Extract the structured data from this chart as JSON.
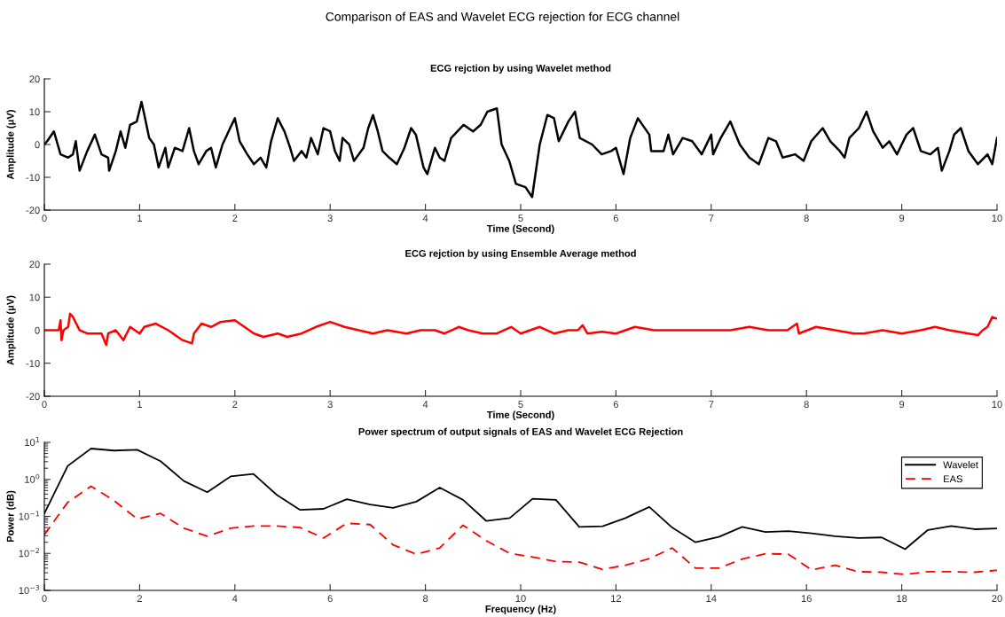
{
  "chart_data": [
    {
      "type": "line",
      "title": "ECG rejction by using Wavelet method",
      "annotations": [
        "Comparison of EAS and Wavelet ECG rejection for ECG channel"
      ],
      "xlabel": "Time (Second)",
      "ylabel": "Amplitude (μV)",
      "xlim": [
        0,
        10
      ],
      "ylim": [
        -20,
        20
      ],
      "xticks": [
        0,
        1,
        2,
        3,
        4,
        5,
        6,
        7,
        8,
        9,
        10
      ],
      "yticks": [
        -20,
        -10,
        0,
        10,
        20
      ],
      "grid": false,
      "legend": false,
      "series": [
        {
          "color": "#000000",
          "x": [
            0,
            0.03,
            0.1,
            0.17,
            0.25,
            0.3,
            0.33,
            0.37,
            0.45,
            0.53,
            0.6,
            0.67,
            0.68,
            0.75,
            0.8,
            0.85,
            0.9,
            0.97,
            1.02,
            1.05,
            1.1,
            1.15,
            1.2,
            1.27,
            1.3,
            1.37,
            1.45,
            1.52,
            1.57,
            1.62,
            1.7,
            1.75,
            1.8,
            1.87,
            1.95,
            2.0,
            2.05,
            2.13,
            2.2,
            2.27,
            2.33,
            2.38,
            2.45,
            2.52,
            2.58,
            2.62,
            2.7,
            2.75,
            2.8,
            2.87,
            2.93,
            3.0,
            3.05,
            3.1,
            3.13,
            3.2,
            3.25,
            3.35,
            3.4,
            3.45,
            3.5,
            3.55,
            3.62,
            3.7,
            3.78,
            3.85,
            3.9,
            3.98,
            4.02,
            4.1,
            4.15,
            4.2,
            4.27,
            4.4,
            4.5,
            4.58,
            4.65,
            4.75,
            4.8,
            4.88,
            4.95,
            5.05,
            5.12,
            5.2,
            5.28,
            5.35,
            5.4,
            5.5,
            5.57,
            5.62,
            5.75,
            5.85,
            5.95,
            6.0,
            6.08,
            6.15,
            6.23,
            6.35,
            6.37,
            6.5,
            6.55,
            6.6,
            6.7,
            6.8,
            6.9,
            7.0,
            7.02,
            7.1,
            7.2,
            7.3,
            7.4,
            7.5,
            7.6,
            7.68,
            7.75,
            7.88,
            7.97,
            8.05,
            8.17,
            8.25,
            8.35,
            8.4,
            8.45,
            8.55,
            8.63,
            8.7,
            8.8,
            8.87,
            8.95,
            9.05,
            9.12,
            9.2,
            9.3,
            9.38,
            9.42,
            9.5,
            9.55,
            9.62,
            9.7,
            9.8,
            9.9,
            9.95,
            10.0
          ],
          "values": [
            0,
            1,
            4,
            -3,
            -4,
            -3,
            1,
            -8,
            -2,
            3,
            -3,
            -4,
            -8,
            -2,
            4,
            -1,
            6,
            7,
            13,
            9,
            2,
            0,
            -7,
            -1,
            -7,
            -1,
            -2,
            5,
            -2,
            -6,
            -2,
            -1,
            -7,
            0,
            5,
            8,
            1,
            -3,
            -6,
            -4,
            -7,
            1,
            8,
            4,
            -1,
            -5,
            -2,
            -4,
            2,
            -3,
            5,
            4,
            -2,
            -5,
            2,
            0,
            -5,
            -1,
            5,
            9,
            4,
            -2,
            -4,
            -6,
            -1,
            5,
            3,
            -7,
            -9,
            -1,
            -4,
            -5,
            2,
            6,
            4,
            6,
            10,
            11,
            0,
            -5,
            -12,
            -13,
            -16,
            0,
            9,
            8,
            1,
            7,
            10,
            2,
            0,
            -3,
            -2,
            -1,
            -9,
            2,
            8,
            3,
            -2,
            -2,
            3,
            -3,
            2,
            1,
            -3,
            3,
            -3,
            2,
            7,
            0,
            -4,
            -6,
            2,
            1,
            -4,
            -3,
            -5,
            1,
            5,
            1,
            -2,
            -4,
            2,
            5,
            10,
            4,
            -1,
            1,
            -3,
            3,
            5,
            -2,
            -3,
            -1,
            -8,
            -2,
            3,
            5,
            -2,
            -6,
            -3,
            -6,
            2
          ]
        }
      ]
    },
    {
      "type": "line",
      "title": "ECG rejction by using Ensemble Average method",
      "xlabel": "Time (Second)",
      "ylabel": "Amplitude (μV)",
      "xlim": [
        0,
        10
      ],
      "ylim": [
        -20,
        20
      ],
      "xticks": [
        0,
        1,
        2,
        3,
        4,
        5,
        6,
        7,
        8,
        9,
        10
      ],
      "yticks": [
        -20,
        -10,
        0,
        10,
        20
      ],
      "grid": false,
      "legend": false,
      "series": [
        {
          "color": "#ff0000",
          "x": [
            0,
            0.15,
            0.17,
            0.18,
            0.2,
            0.25,
            0.27,
            0.3,
            0.37,
            0.45,
            0.55,
            0.6,
            0.65,
            0.67,
            0.75,
            0.83,
            0.9,
            1.0,
            1.05,
            1.17,
            1.3,
            1.45,
            1.55,
            1.57,
            1.65,
            1.75,
            1.85,
            2.0,
            2.1,
            2.2,
            2.3,
            2.45,
            2.55,
            2.7,
            2.85,
            3.0,
            3.15,
            3.3,
            3.45,
            3.6,
            3.8,
            3.95,
            4.1,
            4.2,
            4.35,
            4.45,
            4.6,
            4.75,
            4.9,
            5.0,
            5.2,
            5.35,
            5.5,
            5.6,
            5.65,
            5.7,
            5.85,
            6.0,
            6.2,
            6.4,
            6.6,
            6.8,
            7.0,
            7.2,
            7.4,
            7.6,
            7.8,
            7.9,
            7.92,
            8.1,
            8.3,
            8.5,
            8.6,
            8.8,
            9.0,
            9.2,
            9.35,
            9.5,
            9.7,
            9.8,
            9.85,
            9.9,
            9.95,
            10.0
          ],
          "values": [
            0,
            0,
            3,
            -3,
            0,
            1,
            5,
            4,
            0,
            -1,
            -1,
            -1,
            -4.5,
            -1,
            0,
            -3,
            1,
            -1,
            1,
            2,
            0,
            -3,
            -4,
            -1,
            2,
            1,
            2.5,
            3,
            1,
            -1,
            -2,
            -1,
            -2,
            -1,
            1,
            2.5,
            1,
            0,
            -1,
            0,
            -1,
            0,
            0,
            -1,
            1,
            0,
            -1,
            -1,
            1,
            -1,
            1,
            -1,
            0,
            0,
            1.5,
            -1,
            -0.5,
            -1,
            1,
            0,
            0,
            0,
            0,
            0,
            1,
            0,
            0,
            2,
            -1,
            1,
            0,
            -1,
            -1,
            0,
            -1,
            0,
            1,
            0,
            -1,
            -1.5,
            0,
            1,
            4,
            3.5
          ]
        }
      ]
    },
    {
      "type": "line",
      "title": "Power spectrum of output signals of EAS and Wavelet ECG Rejection",
      "xlabel": "Frequency (Hz)",
      "ylabel": "Power (dB)",
      "log": "y",
      "xlim": [
        0,
        20
      ],
      "ylim": [
        0.001,
        10
      ],
      "xticks": [
        0,
        2,
        4,
        6,
        8,
        10,
        12,
        14,
        16,
        18,
        20
      ],
      "yticks": [
        {
          "value": 0.001,
          "label": "10$^{−3}$"
        },
        {
          "value": 0.01,
          "label": "10$^{−2}$"
        },
        {
          "value": 0.1,
          "label": "10$^{−1}$"
        },
        {
          "value": 1,
          "label": "10$^{0}$"
        },
        {
          "value": 10,
          "label": "10$^{1}$"
        }
      ],
      "grid": false,
      "legend": "top right",
      "x": [
        0,
        0.49,
        0.98,
        1.46,
        1.95,
        2.44,
        2.93,
        3.42,
        3.91,
        4.39,
        4.88,
        5.37,
        5.86,
        6.35,
        6.84,
        7.32,
        7.81,
        8.3,
        8.79,
        9.28,
        9.77,
        10.25,
        10.74,
        11.23,
        11.72,
        12.2,
        12.7,
        13.18,
        13.67,
        14.16,
        14.65,
        15.14,
        15.62,
        16.11,
        16.6,
        17.09,
        17.58,
        18.07,
        18.55,
        19.04,
        19.53,
        20
      ],
      "series": [
        {
          "name": "Wavelet",
          "color": "#000000",
          "line_style": "solid",
          "values": [
            0.12,
            2.3,
            6.8,
            6.0,
            6.3,
            3.1,
            0.9,
            0.45,
            1.2,
            1.4,
            0.38,
            0.15,
            0.16,
            0.29,
            0.21,
            0.17,
            0.25,
            0.6,
            0.28,
            0.075,
            0.09,
            0.3,
            0.28,
            0.052,
            0.054,
            0.09,
            0.18,
            0.05,
            0.02,
            0.028,
            0.052,
            0.038,
            0.04,
            0.035,
            0.029,
            0.026,
            0.027,
            0.013,
            0.043,
            0.055,
            0.045,
            0.047
          ]
        },
        {
          "name": "EAS",
          "color": "#ff0000",
          "line_style": "dashed",
          "values": [
            0.032,
            0.24,
            0.65,
            0.27,
            0.085,
            0.12,
            0.048,
            0.029,
            0.048,
            0.055,
            0.055,
            0.05,
            0.026,
            0.065,
            0.06,
            0.017,
            0.0095,
            0.014,
            0.058,
            0.022,
            0.01,
            0.008,
            0.006,
            0.0058,
            0.0037,
            0.0048,
            0.0072,
            0.014,
            0.004,
            0.004,
            0.007,
            0.0098,
            0.0095,
            0.0036,
            0.0048,
            0.0032,
            0.0031,
            0.0027,
            0.0032,
            0.0032,
            0.0031,
            0.0035
          ]
        }
      ]
    }
  ]
}
